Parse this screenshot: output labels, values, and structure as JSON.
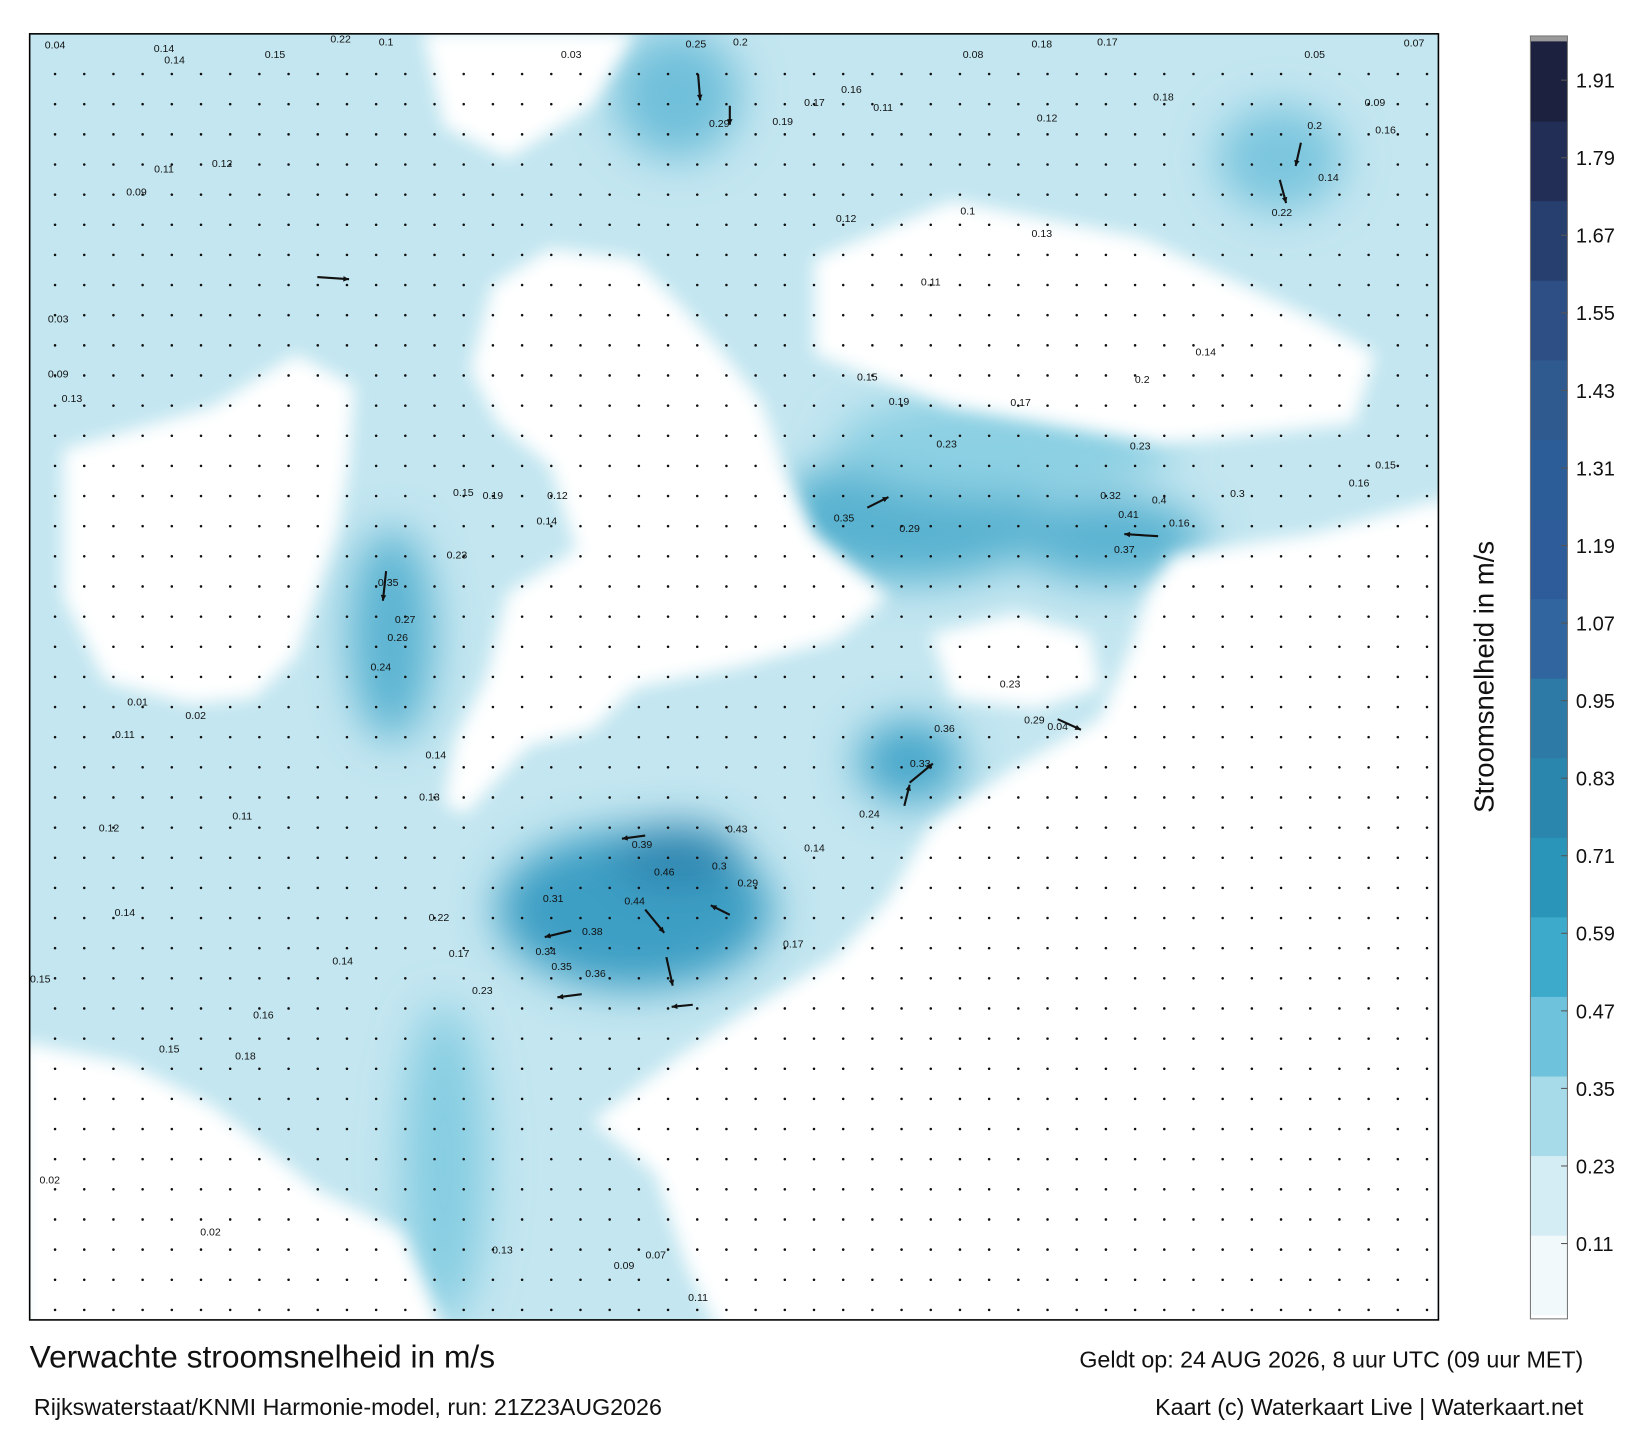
{
  "title": "Verwachte stroomsnelheid in m/s",
  "valid_time": "Geldt op: 24 AUG 2026, 8 uur UTC (09 uur MET)",
  "source": "Rijkswaterstaat/KNMI Harmonie-model, run: 21Z23AUG2026",
  "credit": "Kaart (c) Waterkaart Live | Waterkaart.net",
  "colorbar": {
    "label": "Stroomsnelheid in m/s",
    "lim": [
      0,
      1.97
    ],
    "ticks": [
      0.11,
      0.23,
      0.35,
      0.47,
      0.59,
      0.71,
      0.83,
      0.95,
      1.07,
      1.19,
      1.31,
      1.43,
      1.55,
      1.67,
      1.79,
      1.91
    ],
    "colors": [
      "#f2f9fb",
      "#d4edf4",
      "#a7dbea",
      "#6fc2db",
      "#3eaacb",
      "#2a95b8",
      "#2a86ad",
      "#2d7aa6",
      "#30659f",
      "#2e5c9a",
      "#2c5d98",
      "#2e5a8f",
      "#2d4f86",
      "#273f6e",
      "#222e55",
      "#1c2140"
    ]
  },
  "map": {
    "labels": [
      "0.04",
      "0.14",
      "0.22",
      "0.1",
      "0.15",
      "0.03",
      "0.25",
      "0.2",
      "0.08",
      "0.18",
      "0.17",
      "0.07",
      "0.05",
      "0.09",
      "0.17",
      "0.16",
      "0.29",
      "0.19",
      "0.11",
      "0.12",
      "0.18",
      "0.2",
      "0.16",
      "0.14",
      "0.22",
      "0.12",
      "0.1",
      "0.13",
      "0.11",
      "0.14",
      "0.2",
      "0.15",
      "0.19",
      "0.17",
      "0.23",
      "0.23",
      "0.32",
      "0.41",
      "0.4",
      "0.35",
      "0.29",
      "0.37",
      "0.33",
      "0.36",
      "0.24",
      "0.39",
      "0.43",
      "0.46",
      "0.44",
      "0.31",
      "0.38",
      "0.34",
      "0.35",
      "0.36",
      "0.23",
      "0.17",
      "0.22",
      "0.14",
      "0.16",
      "0.15",
      "0.18",
      "0.02",
      "0.02",
      "0.15",
      "0.14",
      "0.11",
      "0.12",
      "0.13",
      "0.14",
      "0.35",
      "0.27",
      "0.26",
      "0.24",
      "0.15",
      "0.19",
      "0.12",
      "0.14",
      "0.23",
      "0.14",
      "0.09",
      "0.11",
      "0.12",
      "0.03",
      "0.09",
      "0.13",
      "0.01",
      "0.02",
      "0.11",
      "0.13",
      "0.07",
      "0.09",
      "0.11",
      "0.17",
      "0.14",
      "0.3",
      "0.29",
      "0.16",
      "0.3",
      "0.16",
      "0.15",
      "0.23",
      "0.29",
      "0.04"
    ]
  }
}
